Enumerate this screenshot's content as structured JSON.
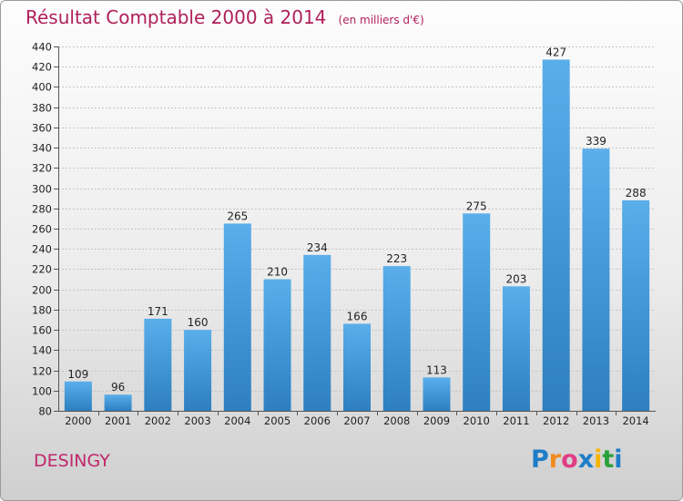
{
  "title": "Résultat Comptable 2000 à 2014",
  "subtitle": "(en milliers d'€)",
  "place": "DESINGY",
  "logo": {
    "letters": [
      "P",
      "r",
      "o",
      "x",
      "i",
      "t",
      "i"
    ],
    "colors": [
      "#1e7dc8",
      "#f28a1e",
      "#e03e84",
      "#1e7dc8",
      "#f5b400",
      "#2aa13b",
      "#1e7dc8"
    ]
  },
  "colors": {
    "bar_light": "#5aaeea",
    "bar_dark": "#2d7fc0",
    "title": "#b0205a"
  },
  "chart_data": {
    "type": "bar",
    "title": "Résultat Comptable 2000 à 2014",
    "subtitle": "(en milliers d'€)",
    "categories": [
      "2000",
      "2001",
      "2002",
      "2003",
      "2004",
      "2005",
      "2006",
      "2007",
      "2008",
      "2009",
      "2010",
      "2011",
      "2012",
      "2013",
      "2014"
    ],
    "values": [
      109,
      96,
      171,
      160,
      265,
      210,
      234,
      166,
      223,
      113,
      275,
      203,
      427,
      339,
      288
    ],
    "ylim": [
      80,
      440
    ],
    "yticks": [
      80,
      100,
      120,
      140,
      160,
      180,
      200,
      220,
      240,
      260,
      280,
      300,
      320,
      340,
      360,
      380,
      400,
      420,
      440
    ],
    "grid": true,
    "data_labels": true
  }
}
